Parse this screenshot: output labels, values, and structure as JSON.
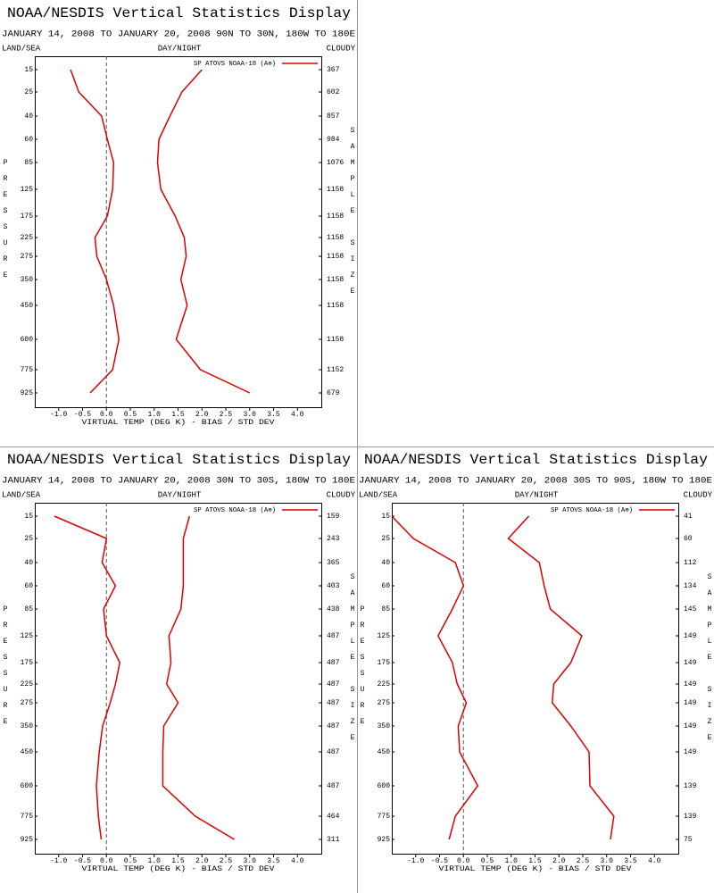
{
  "chart_data": [
    {
      "type": "line",
      "title": "NOAA/NESDIS Vertical Statistics Display",
      "subtitle": "JANUARY 14, 2008 TO JANUARY 20, 2008 90N TO 30N, 180W TO 180E",
      "left_label": "LAND/SEA",
      "center_label": "DAY/NIGHT",
      "right_label": "CLOUDY",
      "y_label": "PRESSURE",
      "y2_label": "SAMPLE SIZE",
      "x_label": "VIRTUAL TEMP (DEG K) - BIAS / STD DEV",
      "categories": [
        15,
        25,
        40,
        60,
        85,
        125,
        175,
        225,
        275,
        350,
        450,
        600,
        775,
        925
      ],
      "sample_size": [
        367,
        602,
        857,
        984,
        1076,
        1158,
        1158,
        1158,
        1158,
        1158,
        1158,
        1158,
        1152,
        679
      ],
      "xlim": [
        -1.5,
        4.5
      ],
      "xticks": [
        {
          "value": -1,
          "label": "-1.0"
        },
        {
          "value": -0.5,
          "label": "-0.5"
        },
        {
          "value": 0,
          "label": "0.0"
        },
        {
          "value": 0.5,
          "label": "0.5"
        },
        {
          "value": 1,
          "label": "1.0"
        },
        {
          "value": 1.5,
          "label": "1.5"
        },
        {
          "value": 2,
          "label": "2.0"
        },
        {
          "value": 2.5,
          "label": "2.5"
        },
        {
          "value": 3,
          "label": "3.0"
        },
        {
          "value": 3.5,
          "label": "3.5"
        },
        {
          "value": 4,
          "label": "4.0"
        }
      ],
      "series": [
        {
          "name": "SP ATOVS NOAA-18 (A⊕)",
          "color": "#dd0000",
          "bias": [
            -0.75,
            -0.58,
            -0.1,
            0.02,
            0.15,
            0.13,
            0.02,
            -0.24,
            -0.2,
            0.0,
            0.15,
            0.26,
            0.13,
            -0.34
          ],
          "std_dev": [
            2.0,
            1.58,
            1.33,
            1.1,
            1.07,
            1.14,
            1.44,
            1.63,
            1.67,
            1.56,
            1.69,
            1.46,
            1.97,
            3.0
          ]
        }
      ]
    },
    {
      "type": "line",
      "title": "NOAA/NESDIS Vertical Statistics Display",
      "subtitle": "JANUARY 14, 2008 TO JANUARY 20, 2008 30N TO 30S, 180W TO 180E",
      "left_label": "LAND/SEA",
      "center_label": "DAY/NIGHT",
      "right_label": "CLOUDY",
      "y_label": "PRESSURE",
      "y2_label": "SAMPLE SIZE",
      "x_label": "VIRTUAL TEMP (DEG K) - BIAS / STD DEV",
      "categories": [
        15,
        25,
        40,
        60,
        85,
        125,
        175,
        225,
        275,
        350,
        450,
        600,
        775,
        925
      ],
      "sample_size": [
        159,
        243,
        365,
        403,
        438,
        487,
        487,
        487,
        487,
        487,
        487,
        487,
        464,
        311
      ],
      "xlim": [
        -1.5,
        4.5
      ],
      "xticks": [
        {
          "value": -1,
          "label": "-1.0"
        },
        {
          "value": -0.5,
          "label": "-0.5"
        },
        {
          "value": 0,
          "label": "0.0"
        },
        {
          "value": 0.5,
          "label": "0.5"
        },
        {
          "value": 1,
          "label": "1.0"
        },
        {
          "value": 1.5,
          "label": "1.5"
        },
        {
          "value": 2,
          "label": "2.0"
        },
        {
          "value": 2.5,
          "label": "2.5"
        },
        {
          "value": 3,
          "label": "3.0"
        },
        {
          "value": 3.5,
          "label": "3.5"
        },
        {
          "value": 4,
          "label": "4.0"
        }
      ],
      "series": [
        {
          "name": "SP ATOVS NOAA-18 (A⊕)",
          "color": "#dd0000",
          "bias": [
            -1.09,
            0.0,
            -0.09,
            0.19,
            -0.06,
            0.0,
            0.28,
            0.19,
            0.08,
            -0.08,
            -0.15,
            -0.21,
            -0.17,
            -0.11
          ],
          "std_dev": [
            1.74,
            1.61,
            1.61,
            1.61,
            1.56,
            1.31,
            1.35,
            1.26,
            1.5,
            1.2,
            1.18,
            1.18,
            1.86,
            2.68
          ]
        }
      ]
    },
    {
      "type": "line",
      "title": "NOAA/NESDIS Vertical Statistics Display",
      "subtitle": "JANUARY 14, 2008 TO JANUARY 20, 2008 30S TO 90S, 180W TO 180E",
      "left_label": "LAND/SEA",
      "center_label": "DAY/NIGHT",
      "right_label": "CLOUDY",
      "y_label": "PRESSURE",
      "y2_label": "SAMPLE SIZE",
      "x_label": "VIRTUAL TEMP (DEG K) - BIAS / STD DEV",
      "categories": [
        15,
        25,
        40,
        60,
        85,
        125,
        175,
        225,
        275,
        350,
        450,
        600,
        775,
        925
      ],
      "sample_size": [
        41,
        60,
        112,
        134,
        145,
        149,
        149,
        149,
        149,
        149,
        149,
        139,
        139,
        75
      ],
      "xlim": [
        -1.5,
        4.5
      ],
      "xticks": [
        {
          "value": -1,
          "label": "-1.0"
        },
        {
          "value": -0.5,
          "label": "-0.5"
        },
        {
          "value": 0,
          "label": "0.0"
        },
        {
          "value": 0.5,
          "label": "0.5"
        },
        {
          "value": 1,
          "label": "1.0"
        },
        {
          "value": 1.5,
          "label": "1.5"
        },
        {
          "value": 2,
          "label": "2.0"
        },
        {
          "value": 2.5,
          "label": "2.5"
        },
        {
          "value": 3,
          "label": "3.0"
        },
        {
          "value": 3.5,
          "label": "3.5"
        },
        {
          "value": 4,
          "label": "4.0"
        }
      ],
      "series": [
        {
          "name": "SP ATOVS NOAA-18 (A⊕)",
          "color": "#dd0000",
          "bias": [
            -1.5,
            -1.05,
            -0.17,
            0.0,
            -0.23,
            -0.53,
            -0.23,
            -0.13,
            0.06,
            -0.11,
            -0.08,
            0.3,
            -0.17,
            -0.3
          ],
          "std_dev": [
            1.37,
            0.94,
            1.59,
            1.69,
            1.82,
            2.48,
            2.25,
            1.89,
            1.86,
            2.25,
            2.63,
            2.65,
            3.15,
            3.08
          ]
        }
      ]
    }
  ]
}
